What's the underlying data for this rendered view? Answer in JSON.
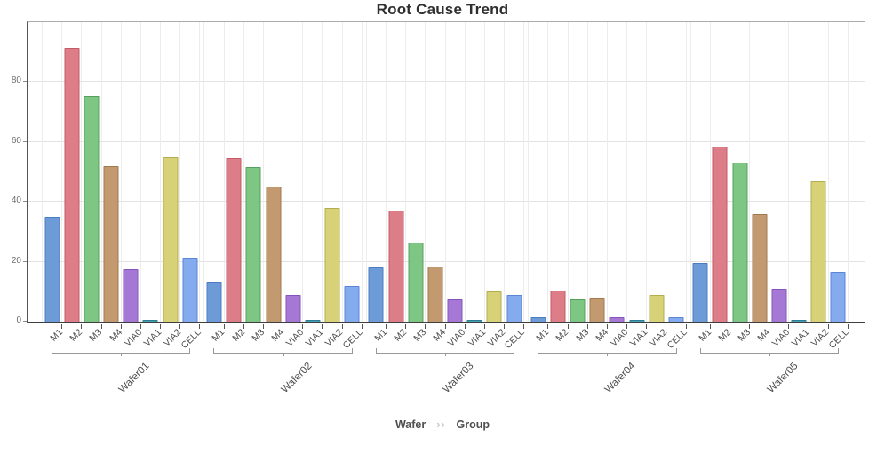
{
  "title": "Root Cause Trend",
  "footer": {
    "level1": "Wafer",
    "separator": "››",
    "level2": "Group"
  },
  "chart_data": {
    "type": "bar",
    "title": "Root Cause Trend",
    "categories": [
      "M1",
      "M2",
      "M3",
      "M4",
      "VIA0",
      "VIA1",
      "VIA2",
      "CELL"
    ],
    "category_colors": [
      {
        "category": "M1",
        "fill": "#6d9bd7",
        "stroke": "#4a7cc0"
      },
      {
        "category": "M2",
        "fill": "#dd7d88",
        "stroke": "#c45a67"
      },
      {
        "category": "M3",
        "fill": "#7ec684",
        "stroke": "#55a05e"
      },
      {
        "category": "M4",
        "fill": "#c39a70",
        "stroke": "#a2794c"
      },
      {
        "category": "VIA0",
        "fill": "#a678d5",
        "stroke": "#8653bb"
      },
      {
        "category": "VIA1",
        "fill": "#45a0b5",
        "stroke": "#2a7e94"
      },
      {
        "category": "VIA2",
        "fill": "#d7d277",
        "stroke": "#b3ad4f"
      },
      {
        "category": "CELL",
        "fill": "#85abef",
        "stroke": "#5b85d6"
      }
    ],
    "groups": [
      {
        "name": "Wafer01",
        "values": [
          35,
          91.5,
          75.5,
          52,
          17.5,
          0.5,
          55,
          21.5
        ]
      },
      {
        "name": "Wafer02",
        "values": [
          13.5,
          54.5,
          51.5,
          45,
          9,
          0.5,
          38,
          12
        ]
      },
      {
        "name": "Wafer03",
        "values": [
          18,
          37,
          26.5,
          18.5,
          7.5,
          0.5,
          10,
          9
        ]
      },
      {
        "name": "Wafer04",
        "values": [
          1.5,
          10.5,
          7.5,
          8,
          1.5,
          0.5,
          9,
          1.5
        ]
      },
      {
        "name": "Wafer05",
        "values": [
          19.5,
          58.5,
          53,
          36,
          11,
          0.5,
          47,
          16.5
        ]
      }
    ],
    "ylim": [
      0,
      100
    ],
    "yticks": [
      0,
      20,
      40,
      60,
      80
    ],
    "grid": true,
    "legend_position": "none",
    "xlabel": "Wafer ›› Group",
    "ylabel": ""
  }
}
